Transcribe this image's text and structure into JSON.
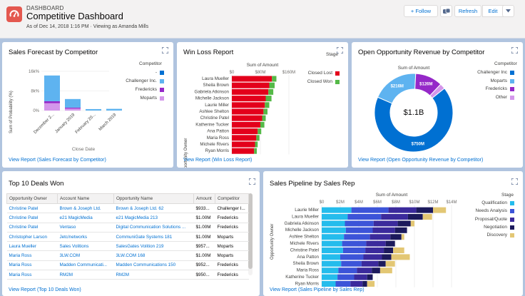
{
  "header": {
    "kicker": "DASHBOARD",
    "title": "Competitive Dashboard",
    "subtitle": "As of Dec 14, 2018 1:16 PM · Viewing as Amanda Mills",
    "follow": "+ Follow",
    "refresh": "Refresh",
    "edit": "Edit"
  },
  "forecast": {
    "title": "Sales Forecast by Competitor",
    "view": "View Report (Sales Forecast by Competitor)",
    "chart_data": {
      "type": "bar",
      "title": "Sales Forecast by Competitor",
      "ylabel": "Sum of Probability (%)",
      "xlabel": "Close Date",
      "yticks": [
        "16k%",
        "8k%",
        "0%"
      ],
      "ylim": [
        0,
        16000
      ],
      "categories": [
        "December 2...",
        "January 2019",
        "February 20...",
        "March 2019"
      ],
      "series": [
        {
          "name": "-",
          "color": "#0070d2",
          "values": [
            0,
            0,
            0,
            0
          ]
        },
        {
          "name": "Challenger Inc.",
          "color": "#5eb3f0",
          "values": [
            10500,
            3500,
            600,
            700
          ]
        },
        {
          "name": "Fredericks",
          "color": "#9528c8",
          "values": [
            800,
            400,
            0,
            0
          ]
        },
        {
          "name": "Moparts",
          "color": "#d496eb",
          "values": [
            3000,
            800,
            0,
            0
          ]
        }
      ],
      "legend_title": "Competitor"
    }
  },
  "winloss": {
    "title": "Win Loss Report",
    "view": "View Report (Win Loss Report)",
    "chart_data": {
      "type": "bar",
      "title": "Win Loss Report",
      "xlabel": "Sum of Amount",
      "ylabel": "Opportunity Owner",
      "xticks": [
        "$0",
        "$80M",
        "$160M"
      ],
      "xlim": [
        0,
        160
      ],
      "categories": [
        "Laura Mueller",
        "Sheila Brown",
        "Gabriela Atkinson",
        "Michelle Jackson",
        "Laurie Miller",
        "Ashlee Shelton",
        "Christine Patel",
        "Katherine Tucker",
        "Ana Patton",
        "Maria Ross",
        "Michele Rivers",
        "Ryan Morris"
      ],
      "series": [
        {
          "name": "Closed Lost",
          "color": "#e3001b",
          "values": [
            90,
            84,
            82,
            76,
            74,
            71,
            68,
            64,
            58,
            55,
            52,
            50
          ]
        },
        {
          "name": "Closed Won",
          "color": "#54b947",
          "values": [
            10,
            12,
            11,
            13,
            10,
            9,
            8,
            9,
            8,
            7,
            6,
            6
          ]
        }
      ],
      "legend_title": "Stage"
    }
  },
  "revenue": {
    "title": "Open Opportunity Revenue by Competitor",
    "view": "View Report (Open Opportunity Revenue by Competitor)",
    "chart_data": {
      "type": "pie",
      "title": "Open Opportunity Revenue by Competitor",
      "subtitle": "Sum of Amount",
      "center": "$1.1B",
      "slices": [
        {
          "name": "Challenger Inc",
          "value": 750,
          "label": "$750M",
          "color": "#0070d2"
        },
        {
          "name": "Moparts",
          "value": 216,
          "label": "$216M",
          "color": "#5eb3f0"
        },
        {
          "name": "Fredericks",
          "value": 126,
          "label": "$126M",
          "color": "#9528c8"
        },
        {
          "name": "Other",
          "value": 25,
          "label": "",
          "color": "#d496eb"
        }
      ],
      "legend_title": "Competitor"
    }
  },
  "deals": {
    "title": "Top 10 Deals Won",
    "view": "View Report (Top 10 Deals Won)",
    "columns": [
      "Opportunity Owner",
      "Account Name",
      "Opportunity Name",
      "Amount",
      "Competitor"
    ],
    "rows": [
      [
        "Christine Patel",
        "Brown & Joseph Ltd.",
        "Brown & Joseph Ltd. 62",
        "$933...",
        "Challenger I..."
      ],
      [
        "Christine Patel",
        "e21 MagicMedia",
        "e21 MagicMedia 213",
        "$1.00M",
        "Fredericks"
      ],
      [
        "Christine Patel",
        "Ventaso",
        "Digital Communication Solutions ...",
        "$1.00M",
        "Fredericks"
      ],
      [
        "Christopher Larson",
        "Jetc/networks",
        "CommuniGate Systems 181",
        "$1.00M",
        "Moparts"
      ],
      [
        "Laura Mueller",
        "Sales Volitions",
        "SalesGates Volition 219",
        "$957...",
        "Moparts"
      ],
      [
        "Maria Ross",
        "3LW.COM",
        "3LW.COM 168",
        "$1.00M",
        "Moparts"
      ],
      [
        "Maria Ross",
        "Madden Communicati...",
        "Madden Communications 150",
        "$952...",
        "Fredericks"
      ],
      [
        "Maria Ross",
        "RM2M",
        "RM2M",
        "$950...",
        "Fredericks"
      ]
    ]
  },
  "pipeline": {
    "title": "Sales Pipeline by Sales Rep",
    "view": "View Report (Sales Pipeline by Sales Rep)",
    "chart_data": {
      "type": "bar",
      "title": "Sales Pipeline by Sales Rep",
      "xlabel": "Sum of Amount",
      "ylabel": "Opportunity Owner",
      "xticks": [
        "$0",
        "$2M",
        "$4M",
        "$6M",
        "$8M",
        "$10M",
        "$12M",
        "$14M"
      ],
      "xlim": [
        0,
        14
      ],
      "categories": [
        "Laurie Miller",
        "Laura Mueller",
        "Gabriela Atkinson",
        "Michelle Jackson",
        "Ashlee Shelton",
        "Michele Rivers",
        "Christine Patel",
        "Ana Patton",
        "Sheila Brown",
        "Maria Ross",
        "Katherine Tucker",
        "Ryan Morris"
      ],
      "series": [
        {
          "name": "Qualification",
          "color": "#24bcec",
          "values": [
            3.2,
            2.8,
            2.5,
            2.6,
            2.4,
            2.2,
            2.3,
            2.0,
            2.1,
            1.8,
            1.7,
            1.5
          ]
        },
        {
          "name": "Needs Analysis",
          "color": "#3c54d8",
          "values": [
            4.0,
            3.6,
            3.1,
            2.9,
            2.8,
            2.6,
            2.4,
            2.5,
            2.2,
            2.0,
            1.8,
            1.6
          ]
        },
        {
          "name": "Proposal/Quote",
          "color": "#3b2a9c",
          "values": [
            3.0,
            2.9,
            2.6,
            2.4,
            2.2,
            2.1,
            2.0,
            2.0,
            1.8,
            1.6,
            1.4,
            1.3
          ]
        },
        {
          "name": "Negotiation",
          "color": "#1c1a5c",
          "values": [
            1.8,
            1.6,
            1.4,
            1.3,
            1.2,
            1.0,
            1.0,
            1.0,
            0.8,
            0.9,
            0.6,
            0.5
          ]
        },
        {
          "name": "Discovery",
          "color": "#e3c774",
          "values": [
            1.4,
            1.0,
            0.4,
            0.0,
            0.3,
            0.0,
            1.2,
            2.0,
            1.0,
            1.3,
            0.0,
            0.8
          ]
        }
      ],
      "legend_title": "Stage"
    }
  }
}
